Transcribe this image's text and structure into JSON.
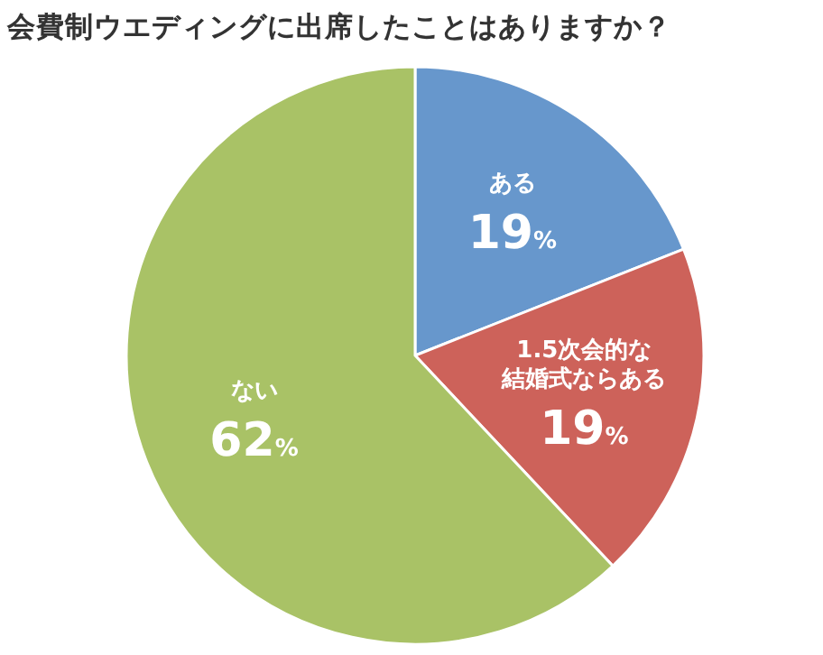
{
  "chart_data": {
    "type": "pie",
    "title": "会費制ウエディングに出席したことはありますか？",
    "categories": [
      "ある",
      "1.5次会的な結婚式ならある",
      "ない"
    ],
    "values": [
      19,
      19,
      62
    ],
    "colors": [
      "#6797cc",
      "#cd625a",
      "#a9c266"
    ],
    "value_labels": [
      "19%",
      "19%",
      "62%"
    ]
  }
}
